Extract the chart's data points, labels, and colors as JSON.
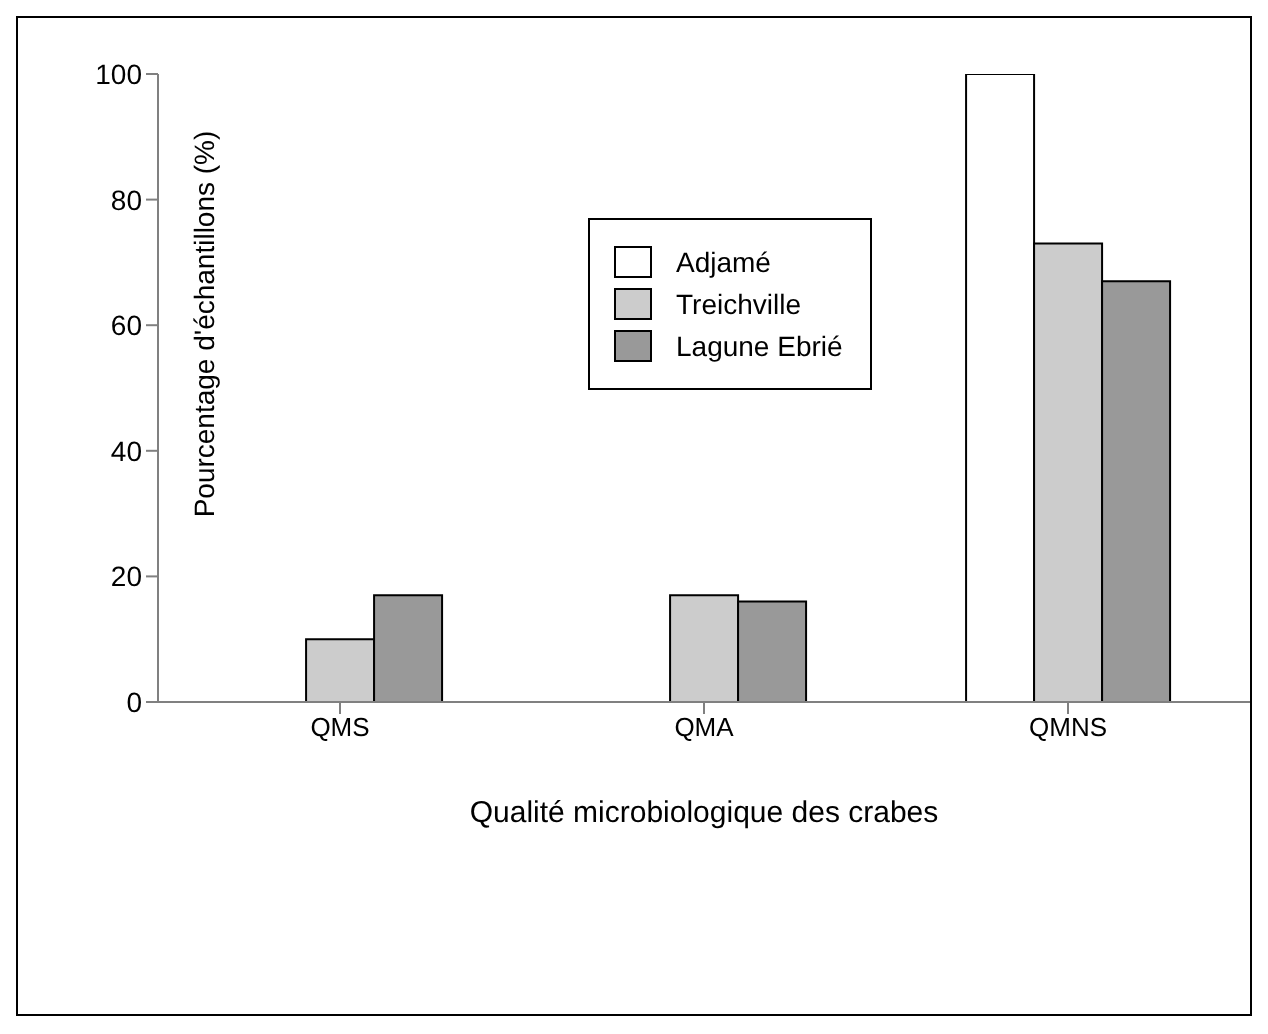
{
  "chart_data": {
    "type": "bar",
    "xlabel": "Qualité microbiologique des crabes",
    "ylabel": "Pourcentage d'échantillons (%)",
    "categories": [
      "QMS",
      "QMA",
      "QMNS"
    ],
    "series": [
      {
        "name": "Adjamé",
        "color": "#ffffff",
        "values": [
          0,
          0,
          100
        ]
      },
      {
        "name": "Treichville",
        "color": "#cccccc",
        "values": [
          10,
          17,
          73
        ]
      },
      {
        "name": "Lagune Ebrié",
        "color": "#999999",
        "values": [
          17,
          16,
          67
        ]
      }
    ],
    "ylim": [
      0,
      100
    ],
    "yticks": [
      0,
      20,
      40,
      60,
      80,
      100
    ],
    "grid": false,
    "legend": "top"
  }
}
